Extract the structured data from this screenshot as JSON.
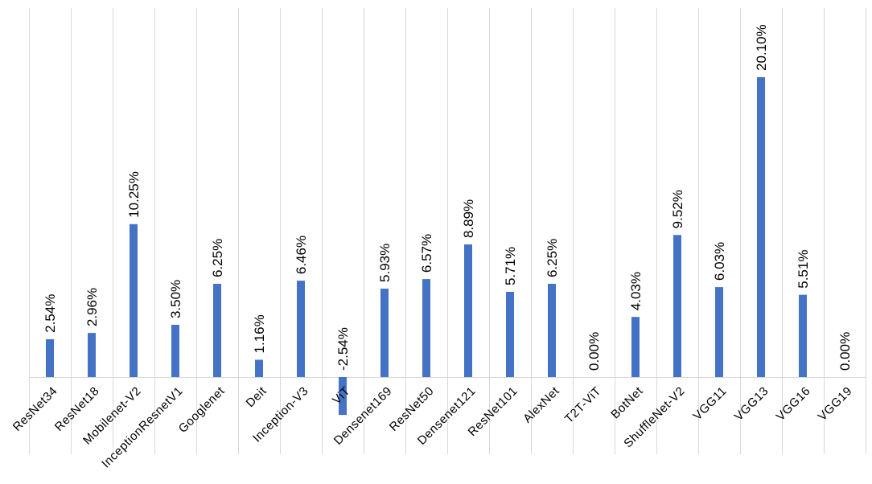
{
  "chart_data": {
    "type": "bar",
    "title": "",
    "xlabel": "",
    "ylabel": "",
    "ylim": [
      -2.54,
      20.1
    ],
    "grid": "vertical",
    "legend": "none",
    "bar_color": "#4472c4",
    "grid_color": "#d9d9d9",
    "categories": [
      "ResNet34",
      "ResNet18",
      "Mobilenet-V2",
      "InceptionResnetV1",
      "Googlenet",
      "Deit",
      "Inception-V3",
      "ViT",
      "Densenet169",
      "ResNet50",
      "Densenet121",
      "ResNet101",
      "AlexNet",
      "T2T-ViT",
      "BotNet",
      "ShuffleNet-V2",
      "VGG11",
      "VGG13",
      "VGG16",
      "VGG19"
    ],
    "values": [
      2.54,
      2.96,
      10.25,
      3.5,
      6.25,
      1.16,
      6.46,
      -2.54,
      5.93,
      6.57,
      8.89,
      5.71,
      6.25,
      0.0,
      4.03,
      9.52,
      6.03,
      20.1,
      5.51,
      0.0
    ],
    "data_labels": [
      "2.54%",
      "2.96%",
      "10.25%",
      "3.50%",
      "6.25%",
      "1.16%",
      "6.46%",
      "-2.54%",
      "5.93%",
      "6.57%",
      "8.89%",
      "5.71%",
      "6.25%",
      "0.00%",
      "4.03%",
      "9.52%",
      "6.03%",
      "20.10%",
      "5.51%",
      "0.00%"
    ]
  }
}
